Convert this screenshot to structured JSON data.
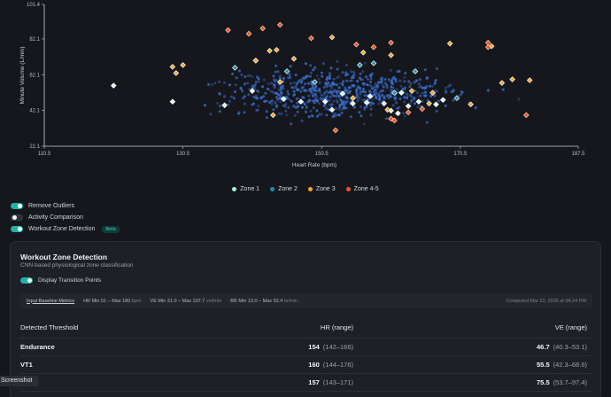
{
  "chart_data": {
    "type": "scatter",
    "xlabel": "Heart Rate (bpm)",
    "ylabel": "Minute Volume (L/min)",
    "xlim": [
      110.5,
      187.5
    ],
    "ylim": [
      22.1,
      101.4
    ],
    "x_ticks": [
      "110.5",
      "130.5",
      "150.5",
      "170.5",
      "187.5"
    ],
    "y_ticks": [
      "101.4",
      "82.1",
      "62.1",
      "42.1",
      "22.1"
    ],
    "grid": false,
    "legend_position": "bottom-center",
    "colors": {
      "background": "#cccccc",
      "zone1": "#a8f0d8",
      "zone2": "#2c86b8",
      "zone3": "#f5a623",
      "zone45": "#f0521e"
    },
    "background_points_note": "",
    "series": [
      {
        "name": "Zone 1",
        "points": [
          [
            120.5,
            56.0
          ],
          [
            129.0,
            47.0
          ],
          [
            136.5,
            45.0
          ],
          [
            140.5,
            53.0
          ],
          [
            145.0,
            48.5
          ],
          [
            147.5,
            47.0
          ],
          [
            151.0,
            47.0
          ],
          [
            152.0,
            42.5
          ],
          [
            153.5,
            51.5
          ],
          [
            155.0,
            46.0
          ],
          [
            157.5,
            50.0
          ],
          [
            159.5,
            46.0
          ],
          [
            160.5,
            42.0
          ],
          [
            161.5,
            40.5
          ],
          [
            162.0,
            52.0
          ],
          [
            163.0,
            44.5
          ],
          [
            164.5,
            47.0
          ],
          [
            167.0,
            45.5
          ],
          [
            168.0,
            48.0
          ],
          [
            157.0,
            46.5
          ]
        ]
      },
      {
        "name": "Zone 2",
        "points": [
          [
            138.0,
            66.0
          ],
          [
            141.0,
            70.0
          ],
          [
            145.5,
            64.0
          ],
          [
            149.5,
            58.0
          ],
          [
            156.0,
            67.5
          ],
          [
            158.0,
            68.5
          ],
          [
            161.0,
            52.0
          ],
          [
            164.0,
            64.0
          ],
          [
            170.0,
            49.0
          ]
        ]
      },
      {
        "name": "Zone 3",
        "points": [
          [
            129.0,
            66.5
          ],
          [
            130.5,
            67.5
          ],
          [
            129.5,
            63.0
          ],
          [
            141.0,
            70.0
          ],
          [
            143.0,
            75.5
          ],
          [
            144.0,
            76.0
          ],
          [
            144.5,
            58.0
          ],
          [
            146.5,
            71.0
          ],
          [
            152.0,
            83.0
          ],
          [
            155.0,
            49.0
          ],
          [
            156.5,
            74.5
          ],
          [
            160.5,
            73.0
          ],
          [
            160.0,
            42.5
          ],
          [
            163.5,
            53.0
          ],
          [
            166.0,
            46.0
          ],
          [
            169.0,
            79.5
          ],
          [
            172.0,
            45.5
          ],
          [
            175.0,
            78.0
          ],
          [
            176.5,
            57.5
          ],
          [
            178.0,
            59.5
          ],
          [
            180.5,
            59.0
          ],
          [
            166.5,
            52.0
          ],
          [
            143.5,
            39.5
          ]
        ]
      },
      {
        "name": "Zone 4-5",
        "points": [
          [
            137.0,
            87.0
          ],
          [
            140.0,
            85.0
          ],
          [
            142.0,
            88.0
          ],
          [
            144.5,
            90.0
          ],
          [
            149.0,
            82.5
          ],
          [
            155.5,
            79.0
          ],
          [
            158.0,
            77.5
          ],
          [
            160.5,
            80.0
          ],
          [
            160.5,
            37.5
          ],
          [
            161.0,
            36.5
          ],
          [
            163.0,
            41.0
          ],
          [
            165.0,
            43.0
          ],
          [
            174.5,
            77.5
          ],
          [
            174.5,
            80.0
          ],
          [
            180.0,
            39.5
          ],
          [
            152.5,
            31.0
          ]
        ]
      }
    ],
    "legend": [
      "Zone 1",
      "Zone 2",
      "Zone 3",
      "Zone 4-5"
    ]
  },
  "toggles": [
    {
      "label": "Remove Outliers",
      "on": true
    },
    {
      "label": "Activity Comparison",
      "on": false
    },
    {
      "label": "Workout Zone Detection",
      "on": true,
      "badge": "Beta"
    }
  ],
  "card": {
    "title": "Workout Zone Detection",
    "subtitle": "CNN-based physiological zone classification",
    "transition_toggle_label": "Display Transition Points",
    "baseline": {
      "link": "Input Baseline Metrics",
      "hr": "HR Min 51 – Max 180",
      "hr_unit": "bpm",
      "ve": "VE Min 31.0 – Max 107.7",
      "ve_unit": "vol/min",
      "br": "BR Min 13.0 – Max 52.4",
      "br_unit": "br/min",
      "computed": "Computed Mar 22, 2026 at 04:24 PM"
    },
    "table": {
      "headers": [
        "Detected Threshold",
        "HR (range)",
        "VE (range)"
      ],
      "rows": [
        {
          "name": "Endurance",
          "hr": "154",
          "hr_range": "(142–166)",
          "ve": "46.7",
          "ve_range": "(40.3–53.1)"
        },
        {
          "name": "VT1",
          "hr": "160",
          "hr_range": "(144–176)",
          "ve": "55.5",
          "ve_range": "(42.3–68.6)"
        },
        {
          "name": "VT2",
          "hr": "157",
          "hr_range": "(143–171)",
          "ve": "75.5",
          "ve_range": "(53.7–97.4)"
        }
      ]
    }
  },
  "screenshot_badge": "Screenshot"
}
